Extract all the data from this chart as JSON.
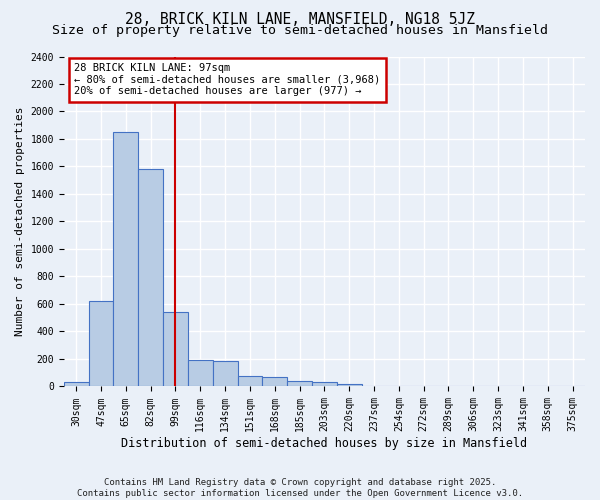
{
  "title1": "28, BRICK KILN LANE, MANSFIELD, NG18 5JZ",
  "title2": "Size of property relative to semi-detached houses in Mansfield",
  "xlabel": "Distribution of semi-detached houses by size in Mansfield",
  "ylabel": "Number of semi-detached properties",
  "bin_labels": [
    "30sqm",
    "47sqm",
    "65sqm",
    "82sqm",
    "99sqm",
    "116sqm",
    "134sqm",
    "151sqm",
    "168sqm",
    "185sqm",
    "203sqm",
    "220sqm",
    "237sqm",
    "254sqm",
    "272sqm",
    "289sqm",
    "306sqm",
    "323sqm",
    "341sqm",
    "358sqm",
    "375sqm"
  ],
  "bar_values": [
    30,
    620,
    1850,
    1580,
    540,
    190,
    185,
    75,
    70,
    40,
    35,
    20,
    0,
    0,
    0,
    0,
    0,
    0,
    0,
    0,
    0
  ],
  "bar_color": "#b8cce4",
  "bar_edge_color": "#4472c4",
  "annotation_line1": "28 BRICK KILN LANE: 97sqm",
  "annotation_line2": "← 80% of semi-detached houses are smaller (3,968)",
  "annotation_line3": "20% of semi-detached houses are larger (977) →",
  "annotation_box_color": "#ffffff",
  "annotation_border_color": "#cc0000",
  "vline_color": "#cc0000",
  "vline_x": 4.0,
  "ylim": [
    0,
    2400
  ],
  "yticks": [
    0,
    200,
    400,
    600,
    800,
    1000,
    1200,
    1400,
    1600,
    1800,
    2000,
    2200,
    2400
  ],
  "footer": "Contains HM Land Registry data © Crown copyright and database right 2025.\nContains public sector information licensed under the Open Government Licence v3.0.",
  "bg_color": "#eaf0f8",
  "plot_bg_color": "#eaf0f8",
  "grid_color": "#ffffff",
  "title_fontsize": 10.5,
  "subtitle_fontsize": 9.5,
  "tick_fontsize": 7,
  "ylabel_fontsize": 8,
  "xlabel_fontsize": 8.5,
  "footer_fontsize": 6.5,
  "annotation_fontsize": 7.5
}
